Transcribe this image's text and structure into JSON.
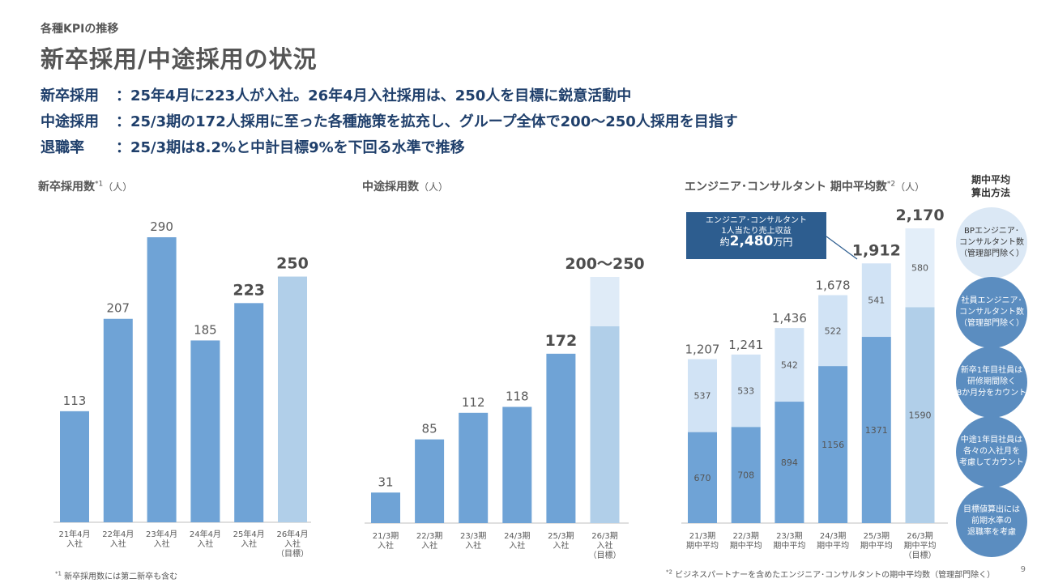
{
  "header": {
    "kicker": "各種KPIの推移",
    "title": "新卒採用/中途採用の状況"
  },
  "summary": [
    {
      "label": "新卒採用",
      "text": "：25年4月に223人が入社。26年4月入社採用は、250人を目標に鋭意活動中"
    },
    {
      "label": "中途採用",
      "text": "：25/3期の172人採用に至った各種施策を拡充し、グループ全体で200～250人採用を目指す"
    },
    {
      "label": "退職率",
      "text": "：25/3期は8.2%と中計目標9%を下回る水準で推移"
    }
  ],
  "charts": {
    "new_grad": {
      "title": "新卒採用数",
      "sup": "*1",
      "unit": "（人）"
    },
    "mid_career": {
      "title": "中途採用数",
      "unit": "（人）"
    },
    "engineers": {
      "title": "エンジニア･コンサルタント 期中平均数",
      "sup": "*2",
      "unit": "（人）"
    }
  },
  "chart_data": [
    {
      "type": "bar",
      "title": "新卒採用数",
      "categories": [
        "21年4月\n入社",
        "22年4月\n入社",
        "23年4月\n入社",
        "24年4月\n入社",
        "25年4月\n入社",
        "26年4月\n入社\n（目標）"
      ],
      "values": [
        113,
        207,
        290,
        185,
        223,
        250
      ],
      "value_labels": [
        "113",
        "207",
        "290",
        "185",
        "223",
        "250"
      ],
      "bold_labels": [
        false,
        false,
        false,
        false,
        true,
        true
      ],
      "target_last": true,
      "ylim": [
        0,
        290
      ]
    },
    {
      "type": "bar",
      "title": "中途採用数",
      "categories": [
        "21/3期\n入社",
        "22/3期\n入社",
        "23/3期\n入社",
        "24/3期\n入社",
        "25/3期\n入社",
        "26/3期\n入社\n（目標）"
      ],
      "values": [
        31,
        85,
        112,
        118,
        172,
        250
      ],
      "target_range": [
        200,
        250
      ],
      "value_labels": [
        "31",
        "85",
        "112",
        "118",
        "172",
        "200～250"
      ],
      "bold_labels": [
        false,
        false,
        false,
        false,
        true,
        true
      ],
      "ylim": [
        0,
        250
      ]
    },
    {
      "type": "bar",
      "title": "エンジニア･コンサルタント 期中平均数",
      "stacked": true,
      "categories": [
        "21/3期\n期中平均",
        "22/3期\n期中平均",
        "23/3期\n期中平均",
        "24/3期\n期中平均",
        "25/3期\n期中平均",
        "26/3期\n期中平均\n（目標）"
      ],
      "series": [
        {
          "values": [
            670,
            708,
            894,
            1156,
            1371,
            1590
          ]
        },
        {
          "values": [
            537,
            533,
            542,
            522,
            541,
            580
          ]
        }
      ],
      "totals": [
        "1,207",
        "1,241",
        "1,436",
        "1,678",
        "1,912",
        "2,170"
      ],
      "bold_totals": [
        false,
        false,
        false,
        false,
        true,
        true
      ],
      "ylim": [
        0,
        2170
      ]
    }
  ],
  "callout": {
    "line1": "エンジニア･コンサルタント",
    "line2": "1人当たり売上収益",
    "prefix": "約",
    "value": "2,480",
    "suffix": "万円"
  },
  "method": {
    "title": "期中平均\n算出方法",
    "circles": [
      "BPエンジニア･\nコンサルタント数\n（管理部門除く）",
      "社員エンジニア･\nコンサルタント数\n（管理部門除く）",
      "新卒1年目社員は\n研修期間除く\n8か月分をカウント",
      "中途1年目社員は\n各々の入社月を\n考慮してカウント",
      "目標値算出には\n前期水準の\n退職率を考慮"
    ]
  },
  "footnotes": {
    "f1": "新卒採用数には第二新卒も含む",
    "f1_mark": "*1",
    "f2": "ビジネスパートナーを含めたエンジニア･コンサルタントの期中平均数（管理部門除く）",
    "f2_mark": "*2"
  },
  "page_number": "9",
  "colors": {
    "bar": "#6fa3d6",
    "bar_target": "#b1cfe9",
    "bar_target_range": "#dfebf7",
    "stack_top": "#d1e3f5",
    "navy": "#1f3f6b",
    "callout": "#2d5d8f"
  }
}
